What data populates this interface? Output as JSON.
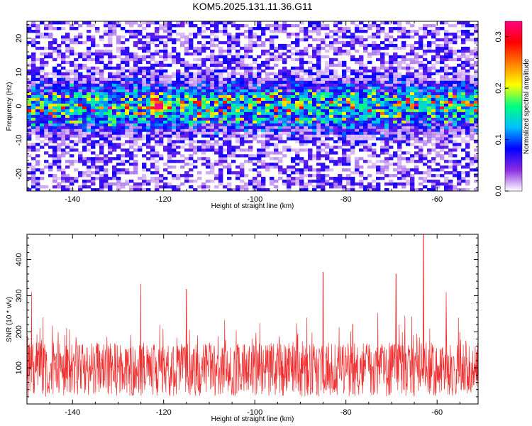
{
  "title": "KOM5.2025.131.11.36.G11",
  "chart_data": [
    {
      "type": "heatmap",
      "xlabel": "Height of straight line (km)",
      "ylabel": "Frequency (Hz)",
      "xlim": [
        -150,
        -51
      ],
      "ylim": [
        -25,
        25
      ],
      "xticks": [
        "-140",
        "-120",
        "-100",
        "-80",
        "-60"
      ],
      "xtick_values": [
        -140,
        -120,
        -100,
        -80,
        -60
      ],
      "yticks": [
        "20",
        "10",
        "0",
        "-10",
        "-20"
      ],
      "ytick_values": [
        20,
        10,
        0,
        -10,
        -20
      ],
      "colorbar": {
        "label": "Normalized spectral amplitude",
        "range": [
          0.0,
          0.33
        ],
        "ticks": [
          "0.0",
          "0.1",
          "0.2",
          "0.3"
        ],
        "tick_values": [
          0.0,
          0.1,
          0.2,
          0.3
        ],
        "colors": [
          "#ffffff",
          "#8a2be2",
          "#0000ff",
          "#00bfff",
          "#00ff80",
          "#ffff00",
          "#ff8000",
          "#ff0000",
          "#ff0080"
        ]
      },
      "band": {
        "center_freq": 0,
        "half_width": 4,
        "peak": {
          "x": -121,
          "y": 0,
          "value": 0.33
        }
      },
      "grid": false
    },
    {
      "type": "line",
      "xlabel": "Height of straight line (km)",
      "ylabel": "SNR (10 * v/v)",
      "xlim": [
        -150,
        -51
      ],
      "ylim": [
        0,
        470
      ],
      "xticks": [
        "-140",
        "-120",
        "-100",
        "-80",
        "-60"
      ],
      "xtick_values": [
        -140,
        -120,
        -100,
        -80,
        -60
      ],
      "yticks": [
        "400",
        "300",
        "200",
        "100"
      ],
      "ytick_values": [
        400,
        300,
        200,
        100
      ],
      "series_color": "#f03030",
      "peaks": [
        {
          "x": -149,
          "y": 310
        },
        {
          "x": -125,
          "y": 333
        },
        {
          "x": -115,
          "y": 318
        },
        {
          "x": -85,
          "y": 365
        },
        {
          "x": -69,
          "y": 360
        },
        {
          "x": -63,
          "y": 470
        },
        {
          "x": -58,
          "y": 310
        }
      ],
      "baseline_mean": 95,
      "grid": false
    }
  ]
}
